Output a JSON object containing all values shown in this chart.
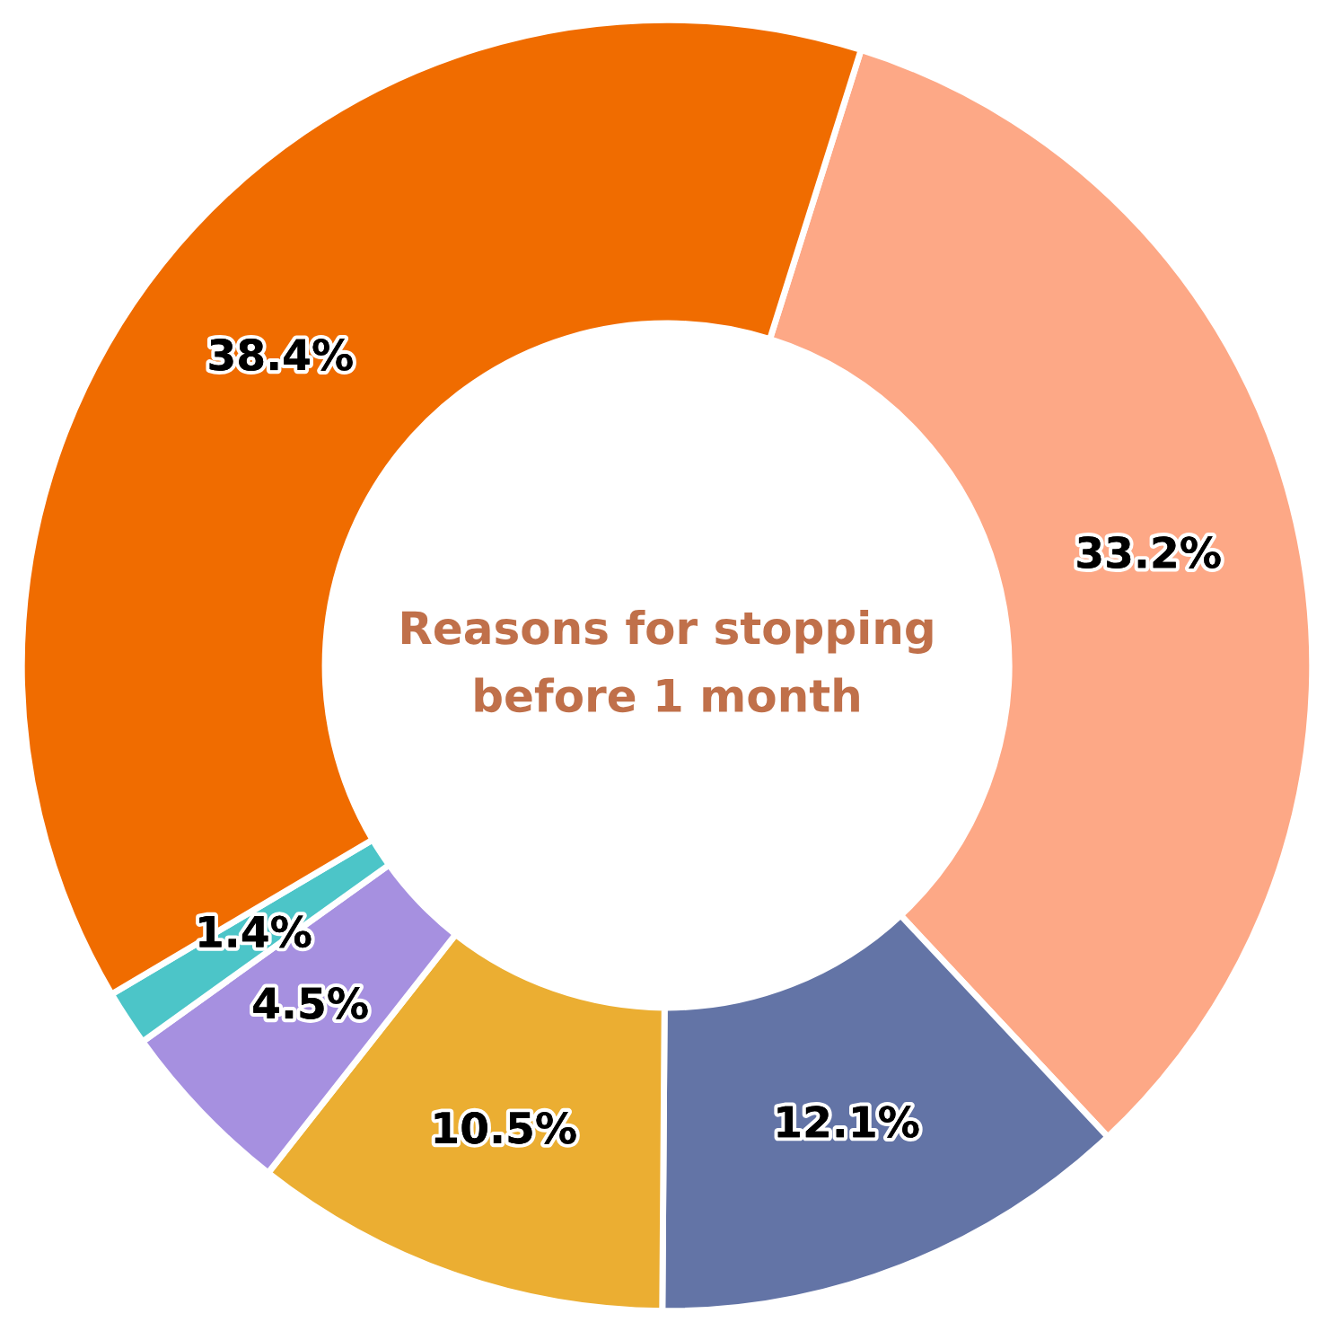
{
  "chart_data": {
    "type": "donut",
    "title": "Reasons for stopping\nbefore 1 month",
    "categories": [
      null,
      null,
      null,
      null,
      null,
      null
    ],
    "values": [
      33.2,
      12.1,
      10.5,
      4.5,
      1.4,
      38.4
    ],
    "value_labels": [
      "33.2%",
      "12.1%",
      "10.5%",
      "4.5%",
      "1.4%",
      "38.4%"
    ],
    "colors": [
      "#fda886",
      "#6374a6",
      "#ebae32",
      "#a690e0",
      "#4cc5c8",
      "#f06c00"
    ],
    "legend": false
  }
}
